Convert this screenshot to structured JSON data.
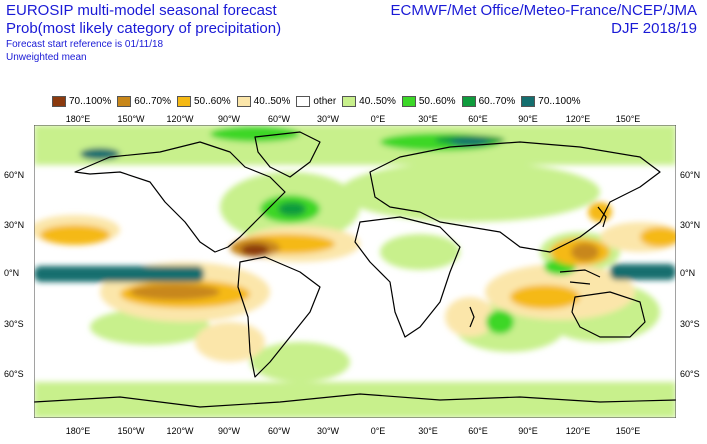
{
  "title": {
    "line1": "EUROSIP multi-model seasonal forecast",
    "line2": "Prob(most likely category of precipitation)",
    "line3": "Forecast start reference is 01/11/18",
    "line4": "Unweighted mean"
  },
  "header_right": {
    "centres": "ECMWF/Met Office/Meteo-France/NCEP/JMA",
    "season": "DJF 2018/19"
  },
  "legend": [
    {
      "label": "70..100%",
      "color": "#8b3a0e"
    },
    {
      "label": "60..70%",
      "color": "#c8871a"
    },
    {
      "label": "50..60%",
      "color": "#f5b914"
    },
    {
      "label": "40..50%",
      "color": "#fbe6aa"
    },
    {
      "label": "other",
      "color": "#ffffff"
    },
    {
      "label": "40..50%",
      "color": "#c8f08c"
    },
    {
      "label": "50..60%",
      "color": "#3cd728"
    },
    {
      "label": "60..70%",
      "color": "#0f9b3c"
    },
    {
      "label": "70..100%",
      "color": "#146e6e"
    }
  ],
  "lon_labels": [
    "180°E",
    "150°W",
    "120°W",
    "90°W",
    "60°W",
    "30°W",
    "0°E",
    "30°E",
    "60°E",
    "90°E",
    "120°E",
    "150°E"
  ],
  "lat_labels": [
    "60°N",
    "30°N",
    "0°N",
    "30°S",
    "60°S"
  ]
}
